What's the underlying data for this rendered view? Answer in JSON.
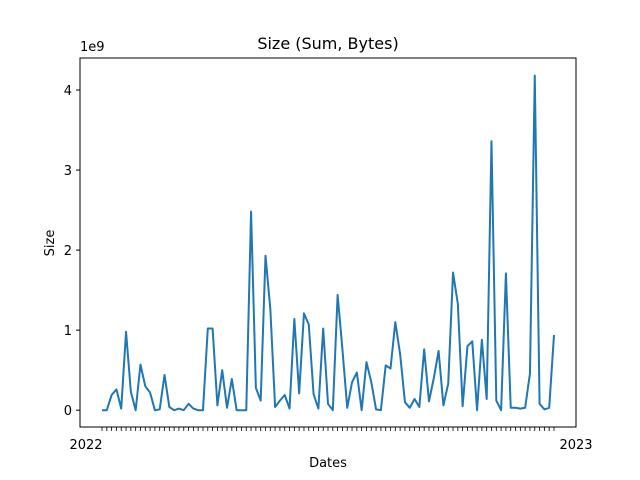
{
  "chart_data": {
    "type": "line",
    "title": "Size (Sum, Bytes)",
    "xlabel": "Dates",
    "ylabel": "Size",
    "y_multiplier_label": "1e9",
    "y_unit_multiplier": 1000000000,
    "ylim": [
      -0.21,
      4.4
    ],
    "y_ticks": [
      0,
      1,
      2,
      3,
      4
    ],
    "x_tick_label_first": "2022",
    "x_tick_label_last": "2023",
    "grid": false,
    "legend": "none",
    "line_color": "#1f77b4",
    "series": [
      {
        "values": [
          0.0,
          0.0,
          0.19,
          0.26,
          0.02,
          0.98,
          0.23,
          0.0,
          0.57,
          0.3,
          0.22,
          0.0,
          0.01,
          0.44,
          0.04,
          0.0,
          0.02,
          0.0,
          0.08,
          0.02,
          0.0,
          0.0,
          1.02,
          1.02,
          0.06,
          0.5,
          0.03,
          0.39,
          0.0,
          0.0,
          0.0,
          2.48,
          0.28,
          0.12,
          1.93,
          1.27,
          0.04,
          0.12,
          0.19,
          0.02,
          1.14,
          0.21,
          1.21,
          1.07,
          0.2,
          0.02,
          1.02,
          0.08,
          0.0,
          1.44,
          0.76,
          0.03,
          0.35,
          0.47,
          0.0,
          0.6,
          0.35,
          0.01,
          0.0,
          0.56,
          0.52,
          1.1,
          0.7,
          0.1,
          0.03,
          0.14,
          0.04,
          0.76,
          0.11,
          0.4,
          0.74,
          0.06,
          0.33,
          1.72,
          1.33,
          0.05,
          0.8,
          0.86,
          0.0,
          0.88,
          0.14,
          3.36,
          0.12,
          0.0,
          1.71,
          0.03,
          0.03,
          0.02,
          0.03,
          0.46,
          4.18,
          0.08,
          0.01,
          0.03,
          0.94
        ]
      }
    ]
  }
}
